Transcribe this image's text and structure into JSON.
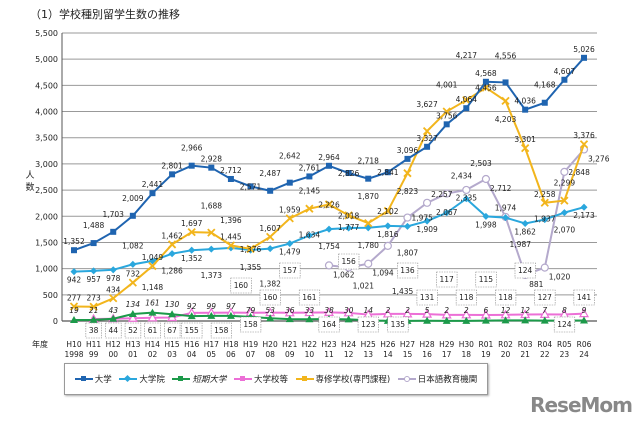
{
  "title": "（1）学校種別留学生数の推移",
  "watermark": "ReseMom",
  "chart_data": {
    "type": "line",
    "title": "（1）学校種別留学生数の推移",
    "ylabel": "人数",
    "xlabel": "年度",
    "ylim": [
      0,
      5500
    ],
    "yticks": [
      0,
      500,
      1000,
      1500,
      2000,
      2500,
      3000,
      3500,
      4000,
      4500,
      5000,
      5500
    ],
    "ytick_labels": [
      "0",
      "500",
      "1,000",
      "1,500",
      "2,000",
      "2,500",
      "3,000",
      "3,500",
      "4,000",
      "4,500",
      "5,000",
      "5,500"
    ],
    "grid": true,
    "legend_position": "bottom",
    "categories": [
      [
        "H10",
        "1998"
      ],
      [
        "H11",
        "99"
      ],
      [
        "H12",
        "00"
      ],
      [
        "H13",
        "01"
      ],
      [
        "H14",
        "02"
      ],
      [
        "H15",
        "03"
      ],
      [
        "H16",
        "04"
      ],
      [
        "H17",
        "05"
      ],
      [
        "H18",
        "06"
      ],
      [
        "H19",
        "07"
      ],
      [
        "H20",
        "08"
      ],
      [
        "H21",
        "09"
      ],
      [
        "H22",
        "10"
      ],
      [
        "H23",
        "11"
      ],
      [
        "H24",
        "12"
      ],
      [
        "H25",
        "13"
      ],
      [
        "H26",
        "14"
      ],
      [
        "H27",
        "15"
      ],
      [
        "H28",
        "16"
      ],
      [
        "H29",
        "17"
      ],
      [
        "H30",
        "18"
      ],
      [
        "R01",
        "19"
      ],
      [
        "R02",
        "20"
      ],
      [
        "R03",
        "21"
      ],
      [
        "R04",
        "22"
      ],
      [
        "R05",
        "23"
      ],
      [
        "R06",
        "24"
      ]
    ],
    "series": [
      {
        "name": "大学",
        "color": "#1f64b0",
        "marker": "square",
        "values": [
          1352,
          1488,
          1703,
          2009,
          2441,
          2801,
          2966,
          2928,
          2712,
          2571,
          2487,
          2642,
          2761,
          2964,
          2826,
          2718,
          2841,
          3096,
          3327,
          3756,
          4064,
          4568,
          4556,
          4036,
          4168,
          4607,
          5026
        ]
      },
      {
        "name": "大学院",
        "color": "#2aa7dd",
        "marker": "diamond",
        "values": [
          942,
          957,
          978,
          1082,
          1148,
          1286,
          1352,
          1373,
          1396,
          1355,
          1382,
          1479,
          1634,
          1754,
          1777,
          1780,
          1816,
          1807,
          1909,
          2067,
          2335,
          1998,
          1974,
          1862,
          1937,
          2070,
          2173
        ]
      },
      {
        "name": "短期大学",
        "color": "#1c9a4a",
        "marker": "triangle",
        "values": [
          19,
          21,
          43,
          134,
          161,
          130,
          92,
          99,
          97,
          79,
          53,
          36,
          33,
          38,
          30,
          14,
          2,
          2,
          5,
          2,
          2,
          6,
          12,
          12,
          7,
          8,
          9
        ]
      },
      {
        "name": "大学校等",
        "color": "#ec6fd6",
        "marker": "triangle-open",
        "values": [
          null,
          38,
          44,
          52,
          61,
          67,
          155,
          158,
          160,
          158,
          160,
          157,
          161,
          164,
          156,
          123,
          135,
          136,
          131,
          117,
          118,
          115,
          118,
          124,
          127,
          124,
          141
        ]
      },
      {
        "name": "専修学校(専門課程)",
        "color": "#f2b51c",
        "marker": "x",
        "values": [
          277,
          273,
          434,
          732,
          1049,
          1462,
          1697,
          1688,
          1445,
          1376,
          1607,
          1959,
          2145,
          2226,
          2018,
          1870,
          2102,
          2823,
          3627,
          4001,
          4217,
          4456,
          4203,
          3301,
          2258,
          2299,
          3376
        ]
      },
      {
        "name": "日本語教育機関",
        "color": "#b4a9cc",
        "marker": "circle-open",
        "values": [
          null,
          null,
          null,
          null,
          null,
          null,
          null,
          null,
          null,
          null,
          null,
          null,
          null,
          1062,
          1021,
          1094,
          1435,
          1975,
          2257,
          2434,
          2503,
          2712,
          1987,
          881,
          1020,
          2848,
          3276
        ]
      }
    ]
  }
}
